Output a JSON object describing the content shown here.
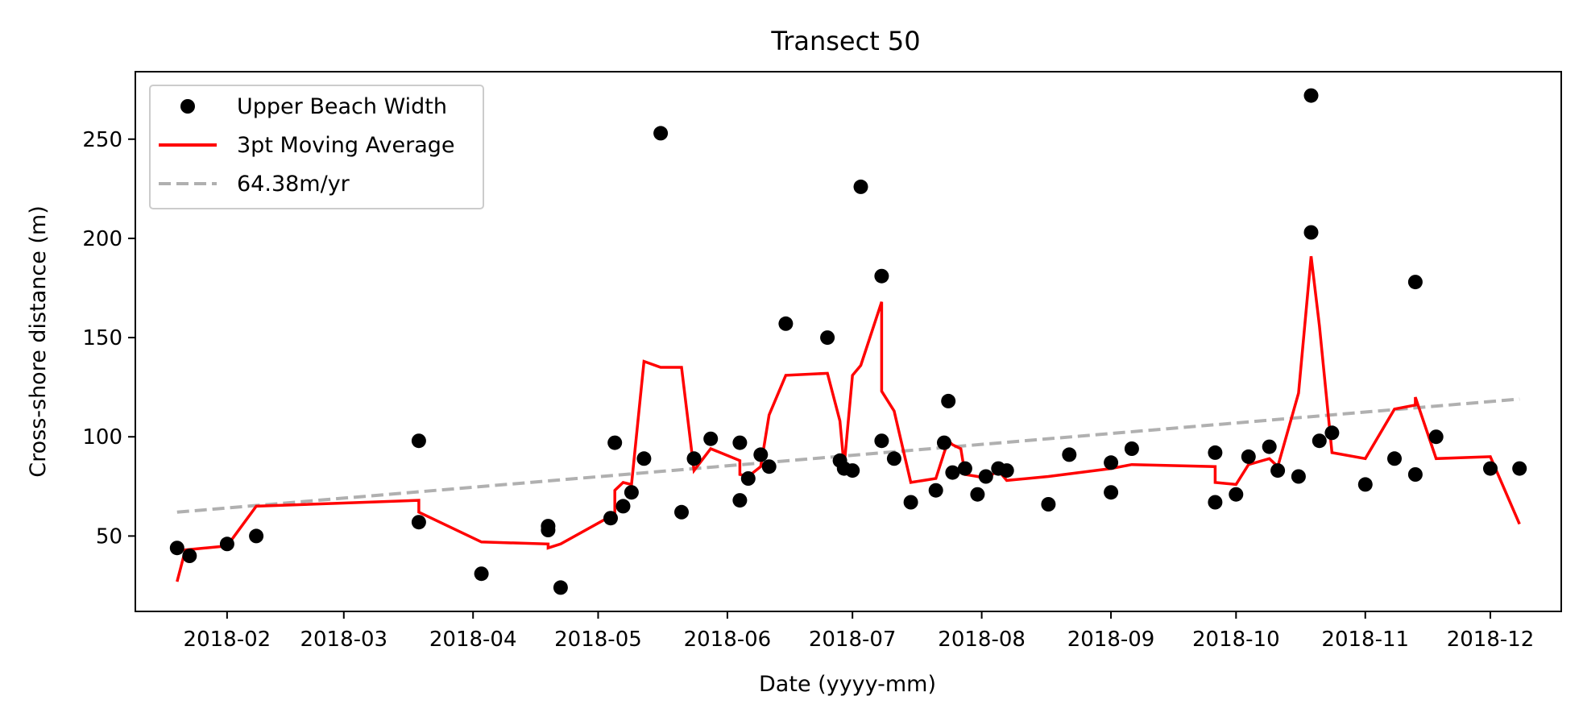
{
  "chart_data": {
    "type": "scatter",
    "title": "Transect 50",
    "xlabel": "Date (yyyy-mm)",
    "ylabel": "Cross-shore distance (m)",
    "xlim": [
      "2018-01-10",
      "2018-12-18"
    ],
    "ylim": [
      12,
      284
    ],
    "x_ticks": [
      "2018-02",
      "2018-03",
      "2018-04",
      "2018-05",
      "2018-06",
      "2018-07",
      "2018-08",
      "2018-09",
      "2018-10",
      "2018-11",
      "2018-12"
    ],
    "x_tick_dates": [
      "2018-02-01",
      "2018-03-01",
      "2018-04-01",
      "2018-05-01",
      "2018-06-01",
      "2018-07-01",
      "2018-08-01",
      "2018-09-01",
      "2018-10-01",
      "2018-11-01",
      "2018-12-01"
    ],
    "y_ticks": [
      50,
      100,
      150,
      200,
      250
    ],
    "grid": false,
    "legend": {
      "placement": "top-left",
      "entries": [
        "Upper Beach Width",
        "3pt Moving Average",
        "64.38m/yr"
      ]
    },
    "colors": {
      "points": "#000000",
      "moving_average": "#ff0000",
      "trend": "#b0b0b0"
    },
    "series": [
      {
        "name": "Upper Beach Width",
        "type": "scatter",
        "points": [
          {
            "date": "2018-01-20",
            "y": 44
          },
          {
            "date": "2018-01-23",
            "y": 40
          },
          {
            "date": "2018-02-01",
            "y": 46
          },
          {
            "date": "2018-02-08",
            "y": 50
          },
          {
            "date": "2018-03-19",
            "y": 98
          },
          {
            "date": "2018-03-19",
            "y": 57
          },
          {
            "date": "2018-04-03",
            "y": 31
          },
          {
            "date": "2018-04-19",
            "y": 55
          },
          {
            "date": "2018-04-19",
            "y": 53
          },
          {
            "date": "2018-04-22",
            "y": 24
          },
          {
            "date": "2018-05-04",
            "y": 59
          },
          {
            "date": "2018-05-05",
            "y": 97
          },
          {
            "date": "2018-05-07",
            "y": 65
          },
          {
            "date": "2018-05-09",
            "y": 72
          },
          {
            "date": "2018-05-12",
            "y": 89
          },
          {
            "date": "2018-05-16",
            "y": 253
          },
          {
            "date": "2018-05-21",
            "y": 62
          },
          {
            "date": "2018-05-24",
            "y": 89
          },
          {
            "date": "2018-05-28",
            "y": 99
          },
          {
            "date": "2018-06-04",
            "y": 97
          },
          {
            "date": "2018-06-04",
            "y": 68
          },
          {
            "date": "2018-06-06",
            "y": 79
          },
          {
            "date": "2018-06-09",
            "y": 91
          },
          {
            "date": "2018-06-11",
            "y": 85
          },
          {
            "date": "2018-06-15",
            "y": 157
          },
          {
            "date": "2018-06-25",
            "y": 150
          },
          {
            "date": "2018-06-28",
            "y": 88
          },
          {
            "date": "2018-06-29",
            "y": 84
          },
          {
            "date": "2018-07-01",
            "y": 83
          },
          {
            "date": "2018-07-03",
            "y": 226
          },
          {
            "date": "2018-07-08",
            "y": 181
          },
          {
            "date": "2018-07-08",
            "y": 98
          },
          {
            "date": "2018-07-11",
            "y": 89
          },
          {
            "date": "2018-07-15",
            "y": 67
          },
          {
            "date": "2018-07-21",
            "y": 73
          },
          {
            "date": "2018-07-23",
            "y": 97
          },
          {
            "date": "2018-07-24",
            "y": 118
          },
          {
            "date": "2018-07-25",
            "y": 82
          },
          {
            "date": "2018-07-28",
            "y": 84
          },
          {
            "date": "2018-07-31",
            "y": 71
          },
          {
            "date": "2018-08-02",
            "y": 80
          },
          {
            "date": "2018-08-05",
            "y": 84
          },
          {
            "date": "2018-08-07",
            "y": 83
          },
          {
            "date": "2018-08-17",
            "y": 66
          },
          {
            "date": "2018-08-22",
            "y": 91
          },
          {
            "date": "2018-09-01",
            "y": 87
          },
          {
            "date": "2018-09-01",
            "y": 72
          },
          {
            "date": "2018-09-06",
            "y": 94
          },
          {
            "date": "2018-09-26",
            "y": 67
          },
          {
            "date": "2018-09-26",
            "y": 92
          },
          {
            "date": "2018-10-01",
            "y": 71
          },
          {
            "date": "2018-10-04",
            "y": 90
          },
          {
            "date": "2018-10-09",
            "y": 95
          },
          {
            "date": "2018-10-11",
            "y": 83
          },
          {
            "date": "2018-10-16",
            "y": 80
          },
          {
            "date": "2018-10-19",
            "y": 272
          },
          {
            "date": "2018-10-19",
            "y": 203
          },
          {
            "date": "2018-10-21",
            "y": 98
          },
          {
            "date": "2018-10-24",
            "y": 102
          },
          {
            "date": "2018-11-01",
            "y": 76
          },
          {
            "date": "2018-11-08",
            "y": 89
          },
          {
            "date": "2018-11-13",
            "y": 178
          },
          {
            "date": "2018-11-13",
            "y": 81
          },
          {
            "date": "2018-11-18",
            "y": 100
          },
          {
            "date": "2018-12-01",
            "y": 84
          },
          {
            "date": "2018-12-08",
            "y": 84
          }
        ]
      },
      {
        "name": "3pt Moving Average",
        "type": "line",
        "points": [
          {
            "date": "2018-01-20",
            "y": 27
          },
          {
            "date": "2018-01-22",
            "y": 43
          },
          {
            "date": "2018-02-01",
            "y": 45
          },
          {
            "date": "2018-02-08",
            "y": 65
          },
          {
            "date": "2018-03-19",
            "y": 68
          },
          {
            "date": "2018-03-19",
            "y": 62
          },
          {
            "date": "2018-04-03",
            "y": 47
          },
          {
            "date": "2018-04-19",
            "y": 46
          },
          {
            "date": "2018-04-19",
            "y": 44
          },
          {
            "date": "2018-04-22",
            "y": 46
          },
          {
            "date": "2018-05-04",
            "y": 60
          },
          {
            "date": "2018-05-05",
            "y": 61
          },
          {
            "date": "2018-05-05",
            "y": 73
          },
          {
            "date": "2018-05-07",
            "y": 77
          },
          {
            "date": "2018-05-09",
            "y": 76
          },
          {
            "date": "2018-05-12",
            "y": 138
          },
          {
            "date": "2018-05-16",
            "y": 135
          },
          {
            "date": "2018-05-21",
            "y": 135
          },
          {
            "date": "2018-05-24",
            "y": 83
          },
          {
            "date": "2018-05-28",
            "y": 94
          },
          {
            "date": "2018-06-04",
            "y": 88
          },
          {
            "date": "2018-06-04",
            "y": 81
          },
          {
            "date": "2018-06-06",
            "y": 80
          },
          {
            "date": "2018-06-09",
            "y": 85
          },
          {
            "date": "2018-06-11",
            "y": 111
          },
          {
            "date": "2018-06-15",
            "y": 131
          },
          {
            "date": "2018-06-25",
            "y": 132
          },
          {
            "date": "2018-06-28",
            "y": 108
          },
          {
            "date": "2018-06-29",
            "y": 85
          },
          {
            "date": "2018-07-01",
            "y": 131
          },
          {
            "date": "2018-07-03",
            "y": 136
          },
          {
            "date": "2018-07-08",
            "y": 168
          },
          {
            "date": "2018-07-08",
            "y": 123
          },
          {
            "date": "2018-07-11",
            "y": 113
          },
          {
            "date": "2018-07-15",
            "y": 77
          },
          {
            "date": "2018-07-21",
            "y": 79
          },
          {
            "date": "2018-07-23",
            "y": 92
          },
          {
            "date": "2018-07-24",
            "y": 98
          },
          {
            "date": "2018-07-25",
            "y": 96
          },
          {
            "date": "2018-07-27",
            "y": 94
          },
          {
            "date": "2018-07-28",
            "y": 81
          },
          {
            "date": "2018-07-31",
            "y": 80
          },
          {
            "date": "2018-08-02",
            "y": 79
          },
          {
            "date": "2018-08-05",
            "y": 83
          },
          {
            "date": "2018-08-07",
            "y": 78
          },
          {
            "date": "2018-08-17",
            "y": 80
          },
          {
            "date": "2018-09-01",
            "y": 84
          },
          {
            "date": "2018-09-06",
            "y": 86
          },
          {
            "date": "2018-09-26",
            "y": 85
          },
          {
            "date": "2018-09-26",
            "y": 77
          },
          {
            "date": "2018-10-01",
            "y": 76
          },
          {
            "date": "2018-10-04",
            "y": 86
          },
          {
            "date": "2018-10-09",
            "y": 89
          },
          {
            "date": "2018-10-11",
            "y": 85
          },
          {
            "date": "2018-10-16",
            "y": 122
          },
          {
            "date": "2018-10-19",
            "y": 191
          },
          {
            "date": "2018-10-21",
            "y": 156
          },
          {
            "date": "2018-10-24",
            "y": 92
          },
          {
            "date": "2018-11-01",
            "y": 89
          },
          {
            "date": "2018-11-08",
            "y": 114
          },
          {
            "date": "2018-11-13",
            "y": 116
          },
          {
            "date": "2018-11-13",
            "y": 120
          },
          {
            "date": "2018-11-18",
            "y": 89
          },
          {
            "date": "2018-12-01",
            "y": 90
          },
          {
            "date": "2018-12-08",
            "y": 56
          }
        ]
      },
      {
        "name": "64.38m/yr",
        "type": "line",
        "style": "dashed",
        "points": [
          {
            "date": "2018-01-20",
            "y": 62
          },
          {
            "date": "2018-12-08",
            "y": 119
          }
        ]
      }
    ]
  }
}
